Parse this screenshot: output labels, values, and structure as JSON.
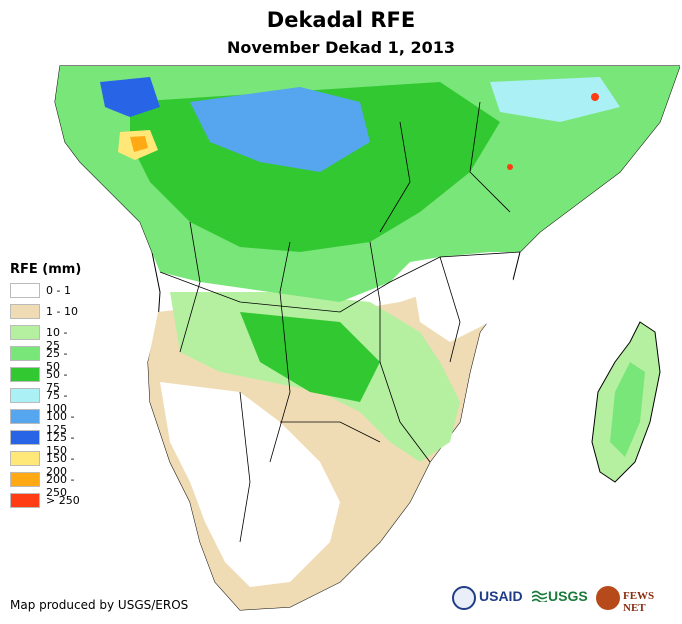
{
  "title": "Dekadal RFE",
  "subtitle": "November Dekad 1, 2013",
  "legend": {
    "title": "RFE (mm)",
    "items": [
      {
        "label": "0 - 1",
        "color": "#ffffff"
      },
      {
        "label": "1 - 10",
        "color": "#f0dcb4"
      },
      {
        "label": "10 - 25",
        "color": "#b4f0a0"
      },
      {
        "label": "25 - 50",
        "color": "#78e678"
      },
      {
        "label": "50 - 75",
        "color": "#32c832"
      },
      {
        "label": "75 - 100",
        "color": "#aaf0f5"
      },
      {
        "label": "100 - 125",
        "color": "#55a5ef"
      },
      {
        "label": "125 - 150",
        "color": "#2864e6"
      },
      {
        "label": "150 - 200",
        "color": "#ffe878"
      },
      {
        "label": "200 - 250",
        "color": "#ffaa14"
      },
      {
        "label": "> 250",
        "color": "#ff3c14"
      }
    ]
  },
  "credit": "Map produced by USGS/EROS",
  "logos": {
    "usaid": "USAID",
    "usgs": "USGS",
    "fews": "FEWS NET"
  }
}
